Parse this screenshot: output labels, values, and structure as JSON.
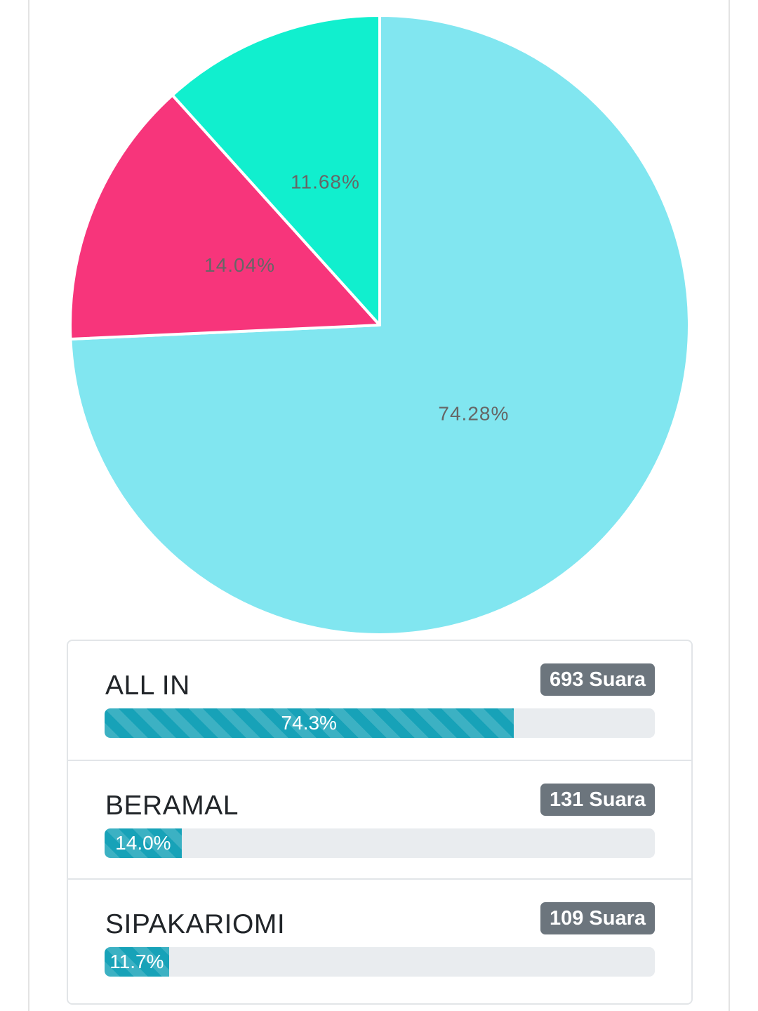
{
  "chart_data": {
    "type": "pie",
    "slices": [
      {
        "label": "ALL IN",
        "value": 74.28,
        "label_text": "74.28%",
        "color": "#81e6f0"
      },
      {
        "label": "BERAMAL",
        "value": 14.04,
        "label_text": "14.04%",
        "color": "#f7357b"
      },
      {
        "label": "SIPAKARIOMI",
        "value": 11.68,
        "label_text": "11.68%",
        "color": "#11efce"
      }
    ],
    "start_angle_deg": 0,
    "direction": "clockwise"
  },
  "results": [
    {
      "name": "ALL IN",
      "votes": "693 Suara",
      "percent": 74.3,
      "percent_label": "74.3%"
    },
    {
      "name": "BERAMAL",
      "votes": "131 Suara",
      "percent": 14.0,
      "percent_label": "14.0%"
    },
    {
      "name": "SIPAKARIOMI",
      "votes": "109 Suara",
      "percent": 11.7,
      "percent_label": "11.7%"
    }
  ],
  "colors": {
    "progress": "#17a2b8",
    "badge": "#6c757d",
    "track": "#e9ecef"
  }
}
